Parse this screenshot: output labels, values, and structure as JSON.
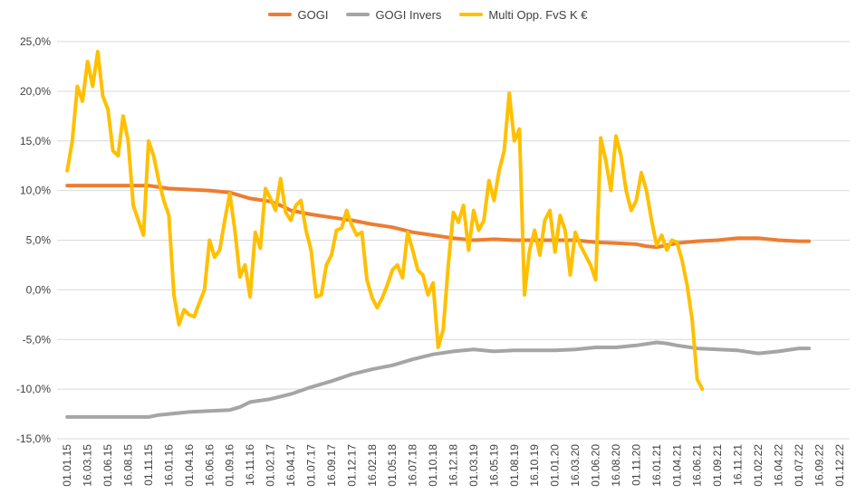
{
  "chart_data": {
    "type": "line",
    "title": "",
    "ylim": [
      -15,
      25
    ],
    "yticks": [
      "25,0%",
      "20,0%",
      "15,0%",
      "10,0%",
      "5,0%",
      "0,0%",
      "-5,0%",
      "-10,0%",
      "-15,0%"
    ],
    "ytick_values": [
      25,
      20,
      15,
      10,
      5,
      0,
      -5,
      -10,
      -15
    ],
    "x_labels": [
      "01.01.15",
      "16.03.15",
      "01.06.15",
      "16.08.15",
      "01.11.15",
      "16.01.16",
      "01.04.16",
      "16.06.16",
      "01.09.16",
      "16.11.16",
      "01.02.17",
      "16.04.17",
      "01.07.17",
      "16.09.17",
      "01.12.17",
      "16.02.18",
      "01.05.18",
      "16.07.18",
      "01.10.18",
      "16.12.18",
      "01.03.19",
      "16.05.19",
      "01.08.19",
      "16.10.19",
      "01.01.20",
      "16.03.20",
      "01.06.20",
      "16.08.20",
      "01.11.20",
      "16.01.21",
      "01.04.21",
      "16.06.21",
      "01.09.21",
      "16.11.21",
      "01.02.22",
      "16.04.22",
      "01.07.22",
      "16.09.22",
      "01.12.22"
    ],
    "grid": true,
    "legend_position": "top",
    "series": [
      {
        "name": "GOGI",
        "color": "#ED7D31",
        "points": [
          [
            0,
            10.5
          ],
          [
            2,
            10.5
          ],
          [
            4,
            10.5
          ],
          [
            5,
            10.2
          ],
          [
            6,
            10.1
          ],
          [
            7,
            10.0
          ],
          [
            8,
            9.8
          ],
          [
            9,
            9.2
          ],
          [
            10,
            8.9
          ],
          [
            10.5,
            8.5
          ],
          [
            11,
            8.0
          ],
          [
            12,
            7.6
          ],
          [
            13,
            7.3
          ],
          [
            14,
            7.0
          ],
          [
            15,
            6.6
          ],
          [
            16,
            6.3
          ],
          [
            17,
            5.8
          ],
          [
            18,
            5.5
          ],
          [
            19,
            5.2
          ],
          [
            20,
            5.0
          ],
          [
            21,
            5.1
          ],
          [
            22,
            5.0
          ],
          [
            23,
            5.0
          ],
          [
            24,
            5.0
          ],
          [
            25,
            5.0
          ],
          [
            26,
            4.8
          ],
          [
            27,
            4.7
          ],
          [
            28,
            4.6
          ],
          [
            28.5,
            4.4
          ],
          [
            29,
            4.3
          ],
          [
            29.5,
            4.5
          ],
          [
            30,
            4.7
          ],
          [
            31,
            4.9
          ],
          [
            32,
            5.0
          ],
          [
            33,
            5.2
          ],
          [
            34,
            5.2
          ],
          [
            35,
            5.0
          ],
          [
            36,
            4.9
          ],
          [
            36.5,
            4.9
          ]
        ]
      },
      {
        "name": "GOGI Invers",
        "color": "#A5A5A5",
        "points": [
          [
            0,
            -12.8
          ],
          [
            2,
            -12.8
          ],
          [
            4,
            -12.8
          ],
          [
            4.5,
            -12.6
          ],
          [
            5,
            -12.5
          ],
          [
            6,
            -12.3
          ],
          [
            7,
            -12.2
          ],
          [
            8,
            -12.1
          ],
          [
            8.5,
            -11.8
          ],
          [
            9,
            -11.3
          ],
          [
            10,
            -11.0
          ],
          [
            11,
            -10.5
          ],
          [
            12,
            -9.8
          ],
          [
            13,
            -9.2
          ],
          [
            14,
            -8.5
          ],
          [
            15,
            -8.0
          ],
          [
            16,
            -7.6
          ],
          [
            17,
            -7.0
          ],
          [
            18,
            -6.5
          ],
          [
            19,
            -6.2
          ],
          [
            20,
            -6.0
          ],
          [
            21,
            -6.2
          ],
          [
            22,
            -6.1
          ],
          [
            23,
            -6.1
          ],
          [
            24,
            -6.1
          ],
          [
            25,
            -6.0
          ],
          [
            26,
            -5.8
          ],
          [
            27,
            -5.8
          ],
          [
            28,
            -5.6
          ],
          [
            29,
            -5.3
          ],
          [
            29.5,
            -5.4
          ],
          [
            30,
            -5.6
          ],
          [
            31,
            -5.9
          ],
          [
            32,
            -6.0
          ],
          [
            33,
            -6.1
          ],
          [
            34,
            -6.4
          ],
          [
            35,
            -6.2
          ],
          [
            36,
            -5.9
          ],
          [
            36.5,
            -5.9
          ]
        ]
      },
      {
        "name": "Multi Opp. FvS K €",
        "color": "#FFC000",
        "points": [
          [
            0,
            12
          ],
          [
            0.25,
            15
          ],
          [
            0.5,
            20.5
          ],
          [
            0.75,
            19
          ],
          [
            1.0,
            23
          ],
          [
            1.25,
            20.5
          ],
          [
            1.5,
            24
          ],
          [
            1.75,
            19.5
          ],
          [
            2.0,
            18.2
          ],
          [
            2.25,
            14
          ],
          [
            2.5,
            13.5
          ],
          [
            2.75,
            17.5
          ],
          [
            3.0,
            15
          ],
          [
            3.25,
            8.5
          ],
          [
            3.5,
            7
          ],
          [
            3.75,
            5.5
          ],
          [
            4.0,
            15
          ],
          [
            4.25,
            13.5
          ],
          [
            4.5,
            11
          ],
          [
            4.75,
            9
          ],
          [
            5.0,
            7.5
          ],
          [
            5.25,
            -0.5
          ],
          [
            5.5,
            -3.5
          ],
          [
            5.75,
            -2
          ],
          [
            6.0,
            -2.5
          ],
          [
            6.25,
            -2.7
          ],
          [
            6.5,
            -1.3
          ],
          [
            6.75,
            0
          ],
          [
            7.0,
            5
          ],
          [
            7.25,
            3.3
          ],
          [
            7.5,
            4
          ],
          [
            7.75,
            7
          ],
          [
            8.0,
            9.7
          ],
          [
            8.25,
            6
          ],
          [
            8.5,
            1.3
          ],
          [
            8.75,
            2.5
          ],
          [
            9.0,
            -0.7
          ],
          [
            9.25,
            5.8
          ],
          [
            9.5,
            4.2
          ],
          [
            9.75,
            10.2
          ],
          [
            10.0,
            9.2
          ],
          [
            10.25,
            8
          ],
          [
            10.5,
            11.2
          ],
          [
            10.75,
            7.8
          ],
          [
            11.0,
            7
          ],
          [
            11.25,
            8.5
          ],
          [
            11.5,
            9
          ],
          [
            11.75,
            6
          ],
          [
            12.0,
            4
          ],
          [
            12.25,
            -0.7
          ],
          [
            12.5,
            -0.5
          ],
          [
            12.75,
            2.5
          ],
          [
            13.0,
            3.5
          ],
          [
            13.25,
            6
          ],
          [
            13.5,
            6.2
          ],
          [
            13.75,
            8
          ],
          [
            14.0,
            6.5
          ],
          [
            14.25,
            5.5
          ],
          [
            14.5,
            5.8
          ],
          [
            14.75,
            1
          ],
          [
            15.0,
            -0.8
          ],
          [
            15.25,
            -1.8
          ],
          [
            15.5,
            -0.8
          ],
          [
            15.75,
            0.5
          ],
          [
            16.0,
            2
          ],
          [
            16.25,
            2.5
          ],
          [
            16.5,
            1.2
          ],
          [
            16.75,
            5.8
          ],
          [
            17.0,
            4
          ],
          [
            17.25,
            2
          ],
          [
            17.5,
            1.5
          ],
          [
            17.75,
            -0.5
          ],
          [
            18.0,
            0.7
          ],
          [
            18.25,
            -5.8
          ],
          [
            18.5,
            -4
          ],
          [
            18.75,
            2.5
          ],
          [
            19.0,
            7.8
          ],
          [
            19.25,
            6.8
          ],
          [
            19.5,
            8.5
          ],
          [
            19.75,
            4
          ],
          [
            20.0,
            8
          ],
          [
            20.25,
            6
          ],
          [
            20.5,
            7
          ],
          [
            20.75,
            11
          ],
          [
            21.0,
            9
          ],
          [
            21.25,
            12
          ],
          [
            21.5,
            14
          ],
          [
            21.75,
            19.8
          ],
          [
            22.0,
            15
          ],
          [
            22.25,
            16.2
          ],
          [
            22.5,
            -0.5
          ],
          [
            22.75,
            4
          ],
          [
            23.0,
            6
          ],
          [
            23.25,
            3.5
          ],
          [
            23.5,
            7
          ],
          [
            23.75,
            8
          ],
          [
            24.0,
            3.8
          ],
          [
            24.25,
            7.5
          ],
          [
            24.5,
            6
          ],
          [
            24.75,
            1.5
          ],
          [
            25.0,
            5.8
          ],
          [
            25.25,
            4.5
          ],
          [
            25.5,
            3.5
          ],
          [
            25.75,
            2.5
          ],
          [
            26.0,
            1
          ],
          [
            26.25,
            15.3
          ],
          [
            26.5,
            13
          ],
          [
            26.75,
            10
          ],
          [
            27.0,
            15.5
          ],
          [
            27.25,
            13.5
          ],
          [
            27.5,
            10
          ],
          [
            27.75,
            8
          ],
          [
            28.0,
            9
          ],
          [
            28.25,
            11.8
          ],
          [
            28.5,
            10
          ],
          [
            28.75,
            7
          ],
          [
            29.0,
            4.5
          ],
          [
            29.25,
            5.5
          ],
          [
            29.5,
            4
          ],
          [
            29.75,
            5
          ],
          [
            30.0,
            4.8
          ],
          [
            30.25,
            3
          ],
          [
            30.5,
            0.5
          ],
          [
            30.75,
            -3
          ],
          [
            31.0,
            -9
          ],
          [
            31.25,
            -10
          ]
        ]
      }
    ]
  }
}
